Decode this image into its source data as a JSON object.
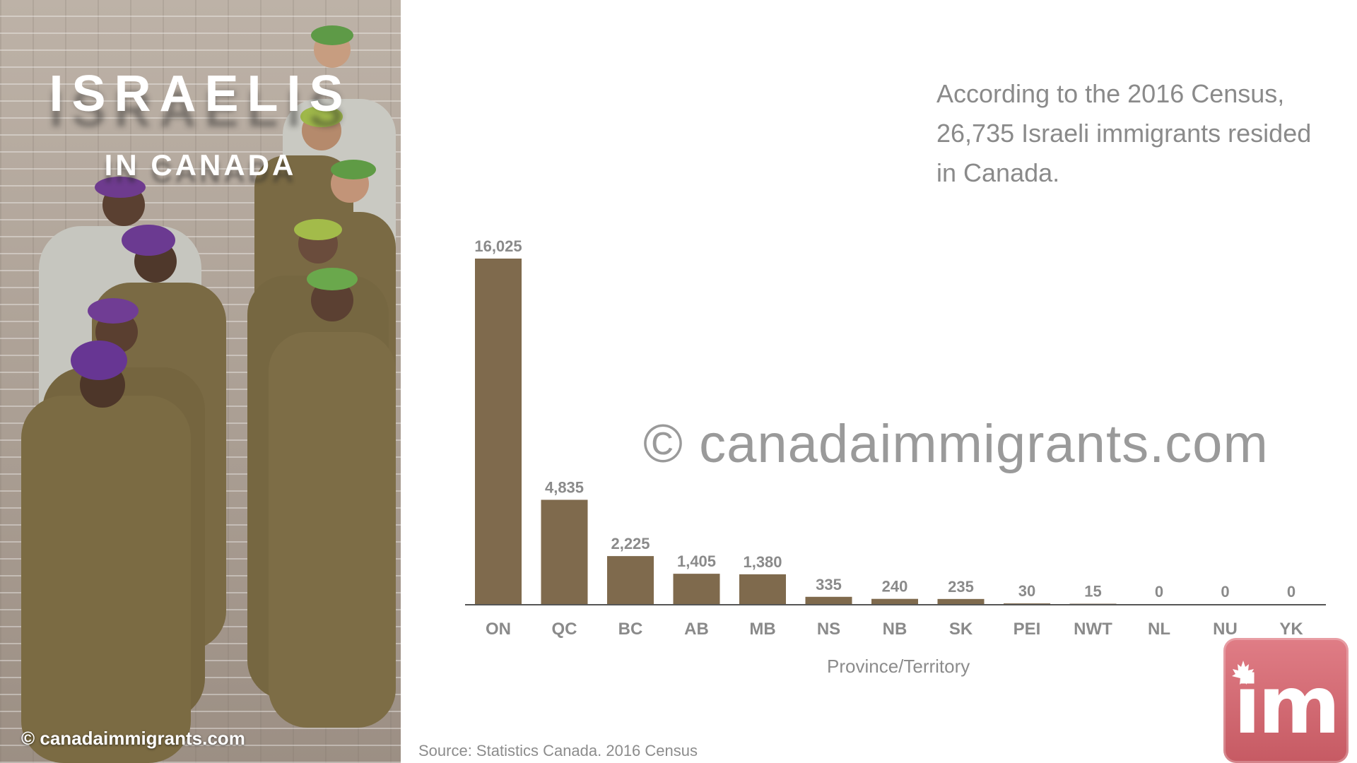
{
  "photo": {
    "title": "ISRAELIS",
    "subtitle": "IN CANADA",
    "credit": "© canadaimmigrants.com"
  },
  "note": {
    "text": "According to the 2016 Census, 26,735 Israeli immigrants resided in Canada."
  },
  "watermark": "© canadaimmigrants.com",
  "source": "Source: Statistics Canada. 2016 Census",
  "logo": {
    "text": "im",
    "icon": "maple-leaf-icon"
  },
  "colors": {
    "bar": "#7f6a4d",
    "axis": "#555555",
    "label": "#8a8a8a",
    "logo": "#d46a73"
  },
  "chart_data": {
    "type": "bar",
    "xlabel": "Province/Territory",
    "ylabel": "",
    "categories": [
      "ON",
      "QC",
      "BC",
      "AB",
      "MB",
      "NS",
      "NB",
      "SK",
      "PEI",
      "NWT",
      "NL",
      "NU",
      "YK"
    ],
    "values": [
      16025,
      4835,
      2225,
      1405,
      1380,
      335,
      240,
      235,
      30,
      15,
      0,
      0,
      0
    ],
    "value_labels": [
      "16,025",
      "4,835",
      "2,225",
      "1,405",
      "1,380",
      "335",
      "240",
      "235",
      "30",
      "15",
      "0",
      "0",
      "0"
    ],
    "ylim": [
      0,
      16025
    ],
    "grid": false,
    "legend": "none"
  }
}
